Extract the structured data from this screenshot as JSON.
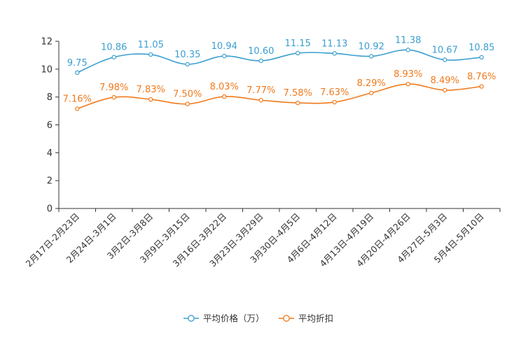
{
  "chart_data": {
    "type": "line",
    "title": "",
    "xlabel": "",
    "ylabel": "",
    "ylim": [
      0,
      12
    ],
    "yticks": [
      0,
      2,
      4,
      6,
      8,
      10,
      12
    ],
    "grid": false,
    "legend_position": "bottom",
    "categories": [
      "2月17日-2月23日",
      "2月24日-3月1日",
      "3月2日-3月8日",
      "3月9日-3月15日",
      "3月16日-3月22日",
      "3月23日-3月29日",
      "3月30日-4月5日",
      "4月6日-4月12日",
      "4月13日-4月19日",
      "4月20日-4月26日",
      "4月27日-5月3日",
      "5月4日-5月10日"
    ],
    "series": [
      {
        "name": "平均价格（万）",
        "color": "#3a9fcf",
        "values": [
          9.75,
          10.86,
          11.05,
          10.35,
          10.94,
          10.6,
          11.15,
          11.13,
          10.92,
          11.38,
          10.67,
          10.85
        ],
        "labels": [
          "9.75",
          "10.86",
          "11.05",
          "10.35",
          "10.94",
          "10.60",
          "11.15",
          "11.13",
          "10.92",
          "11.38",
          "10.67",
          "10.85"
        ]
      },
      {
        "name": "平均折扣",
        "color": "#f07a1c",
        "values": [
          7.16,
          7.98,
          7.83,
          7.5,
          8.03,
          7.77,
          7.58,
          7.63,
          8.29,
          8.93,
          8.49,
          8.76
        ],
        "labels": [
          "7.16%",
          "7.98%",
          "7.83%",
          "7.50%",
          "8.03%",
          "7.77%",
          "7.58%",
          "7.63%",
          "8.29%",
          "8.93%",
          "8.49%",
          "8.76%"
        ]
      }
    ]
  }
}
